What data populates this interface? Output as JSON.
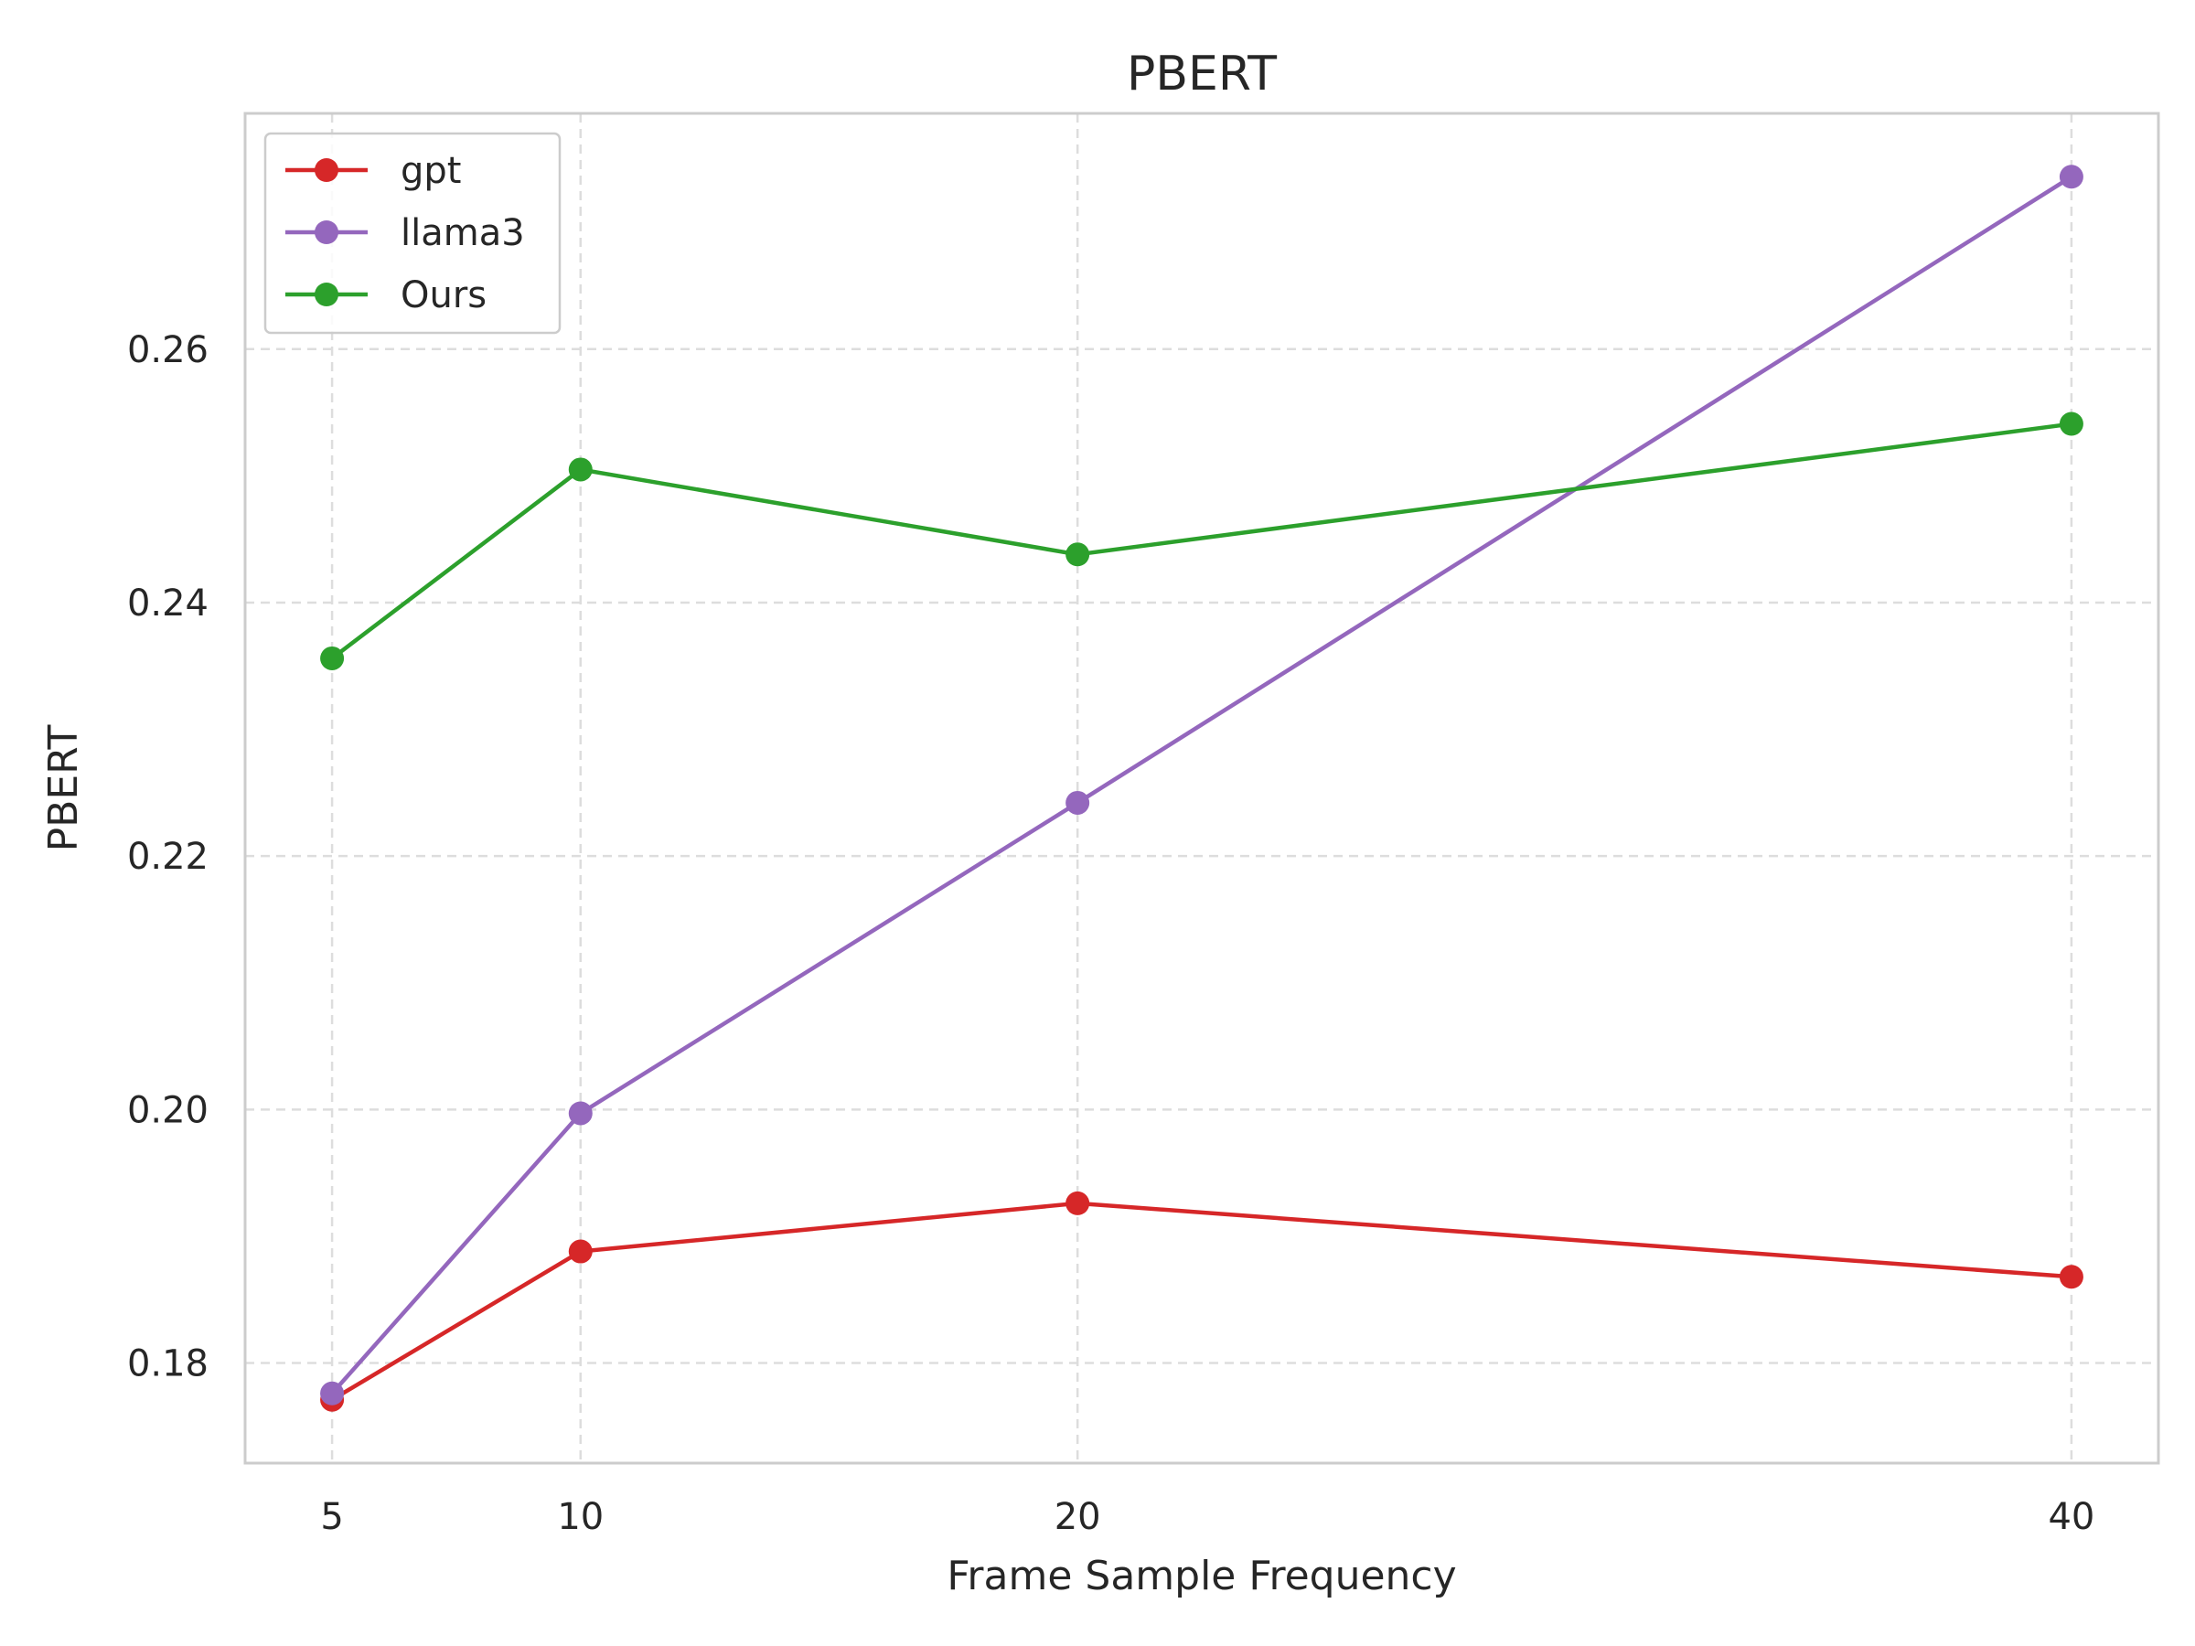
{
  "chart_data": {
    "type": "line",
    "title": "PBERT",
    "xlabel": "Frame Sample Frequency",
    "ylabel": "PBERT",
    "x": [
      5,
      10,
      20,
      40
    ],
    "x_ticks": [
      "5",
      "10",
      "20",
      "40"
    ],
    "y_ticks": [
      "0.18",
      "0.20",
      "0.22",
      "0.24",
      "0.26"
    ],
    "y_tick_values": [
      0.18,
      0.2,
      0.22,
      0.24,
      0.26
    ],
    "xlim": [
      3.25,
      41.75
    ],
    "ylim": [
      0.1721,
      0.2786
    ],
    "grid": true,
    "legend_position": "top-left",
    "series": [
      {
        "name": "gpt",
        "color": "#d62728",
        "values": [
          0.1771,
          0.1888,
          0.1926,
          0.1868
        ]
      },
      {
        "name": "llama3",
        "color": "#9467bd",
        "values": [
          0.1776,
          0.1997,
          0.2242,
          0.2736
        ]
      },
      {
        "name": "Ours",
        "color": "#2ca02c",
        "values": [
          0.2356,
          0.2505,
          0.2438,
          0.2541
        ]
      }
    ]
  }
}
